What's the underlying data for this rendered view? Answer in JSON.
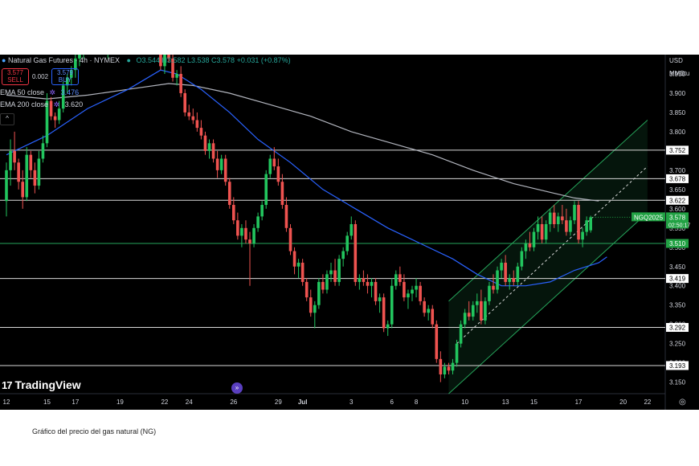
{
  "header": {
    "title": "Natural Gas Futures · 4h · NYMEX",
    "ohlc_text": "O3.544 H3.582 L3.538 C3.578 +0.031 (+0.87%)",
    "sell_price": "3.577",
    "sell_label": "SELL",
    "spread": "0.002",
    "buy_price": "3.579",
    "buy_label": "BUY",
    "ema50_label": "EMA 50 close",
    "ema50_value": "3.476",
    "ema200_label": "EMA 200 close",
    "ema200_value": "3.620",
    "currency": "USD",
    "unit": "MMBtu",
    "collapse_glyph": "^",
    "nav_glyph": "»",
    "settings_glyph": "◎"
  },
  "brand": {
    "name": "TradingView",
    "mark": "17"
  },
  "caption": "Gráfico del precio del gas natural (NG)",
  "colors": {
    "up": "#26a69a",
    "up_bright": "#22c55e",
    "down": "#ef5350",
    "ema50": "#2962ff",
    "ema200": "#b2b5be",
    "level": "#d9d9d9",
    "channel": "#26a65b",
    "price_tag": "#22a244"
  },
  "chart_data": {
    "type": "candlestick",
    "symbol": "NGQ2025",
    "current_price": "3.578",
    "countdown": "02:50:17",
    "ylim": [
      3.12,
      4.0
    ],
    "y_ticks": [
      "3.950",
      "3.900",
      "3.850",
      "3.800",
      "3.750",
      "3.700",
      "3.650",
      "3.600",
      "3.550",
      "3.500",
      "3.450",
      "3.400",
      "3.350",
      "3.300",
      "3.250",
      "3.200",
      "3.150"
    ],
    "x_ticks": [
      {
        "label": "12",
        "i": 0
      },
      {
        "label": "15",
        "i": 10
      },
      {
        "label": "17",
        "i": 17
      },
      {
        "label": "19",
        "i": 28
      },
      {
        "label": "22",
        "i": 39
      },
      {
        "label": "24",
        "i": 45
      },
      {
        "label": "26",
        "i": 56
      },
      {
        "label": "29",
        "i": 67
      },
      {
        "label": "Jul",
        "i": 73
      },
      {
        "label": "3",
        "i": 85
      },
      {
        "label": "6",
        "i": 95
      },
      {
        "label": "8",
        "i": 101
      },
      {
        "label": "10",
        "i": 113
      },
      {
        "label": "13",
        "i": 123
      },
      {
        "label": "15",
        "i": 130
      },
      {
        "label": "17",
        "i": 141
      },
      {
        "label": "20",
        "i": 152
      },
      {
        "label": "22",
        "i": 158
      }
    ],
    "horizontal_levels": [
      {
        "value": 3.752,
        "label": "3.752"
      },
      {
        "value": 3.678,
        "label": "3.678"
      },
      {
        "value": 3.622,
        "label": "3.622"
      },
      {
        "value": 3.419,
        "label": "3.419"
      },
      {
        "value": 3.292,
        "label": "3.292"
      },
      {
        "value": 3.193,
        "label": "3.193"
      }
    ],
    "green_level": {
      "value": 3.51,
      "label": "3.510"
    },
    "ema50_points": [
      [
        0,
        3.74
      ],
      [
        10,
        3.79
      ],
      [
        20,
        3.86
      ],
      [
        30,
        3.91
      ],
      [
        38,
        3.96
      ],
      [
        42,
        3.95
      ],
      [
        48,
        3.91
      ],
      [
        55,
        3.85
      ],
      [
        62,
        3.78
      ],
      [
        70,
        3.72
      ],
      [
        78,
        3.65
      ],
      [
        86,
        3.6
      ],
      [
        94,
        3.55
      ],
      [
        102,
        3.51
      ],
      [
        110,
        3.47
      ],
      [
        116,
        3.43
      ],
      [
        122,
        3.4
      ],
      [
        128,
        3.4
      ],
      [
        134,
        3.41
      ],
      [
        140,
        3.44
      ],
      [
        146,
        3.46
      ],
      [
        148,
        3.475
      ]
    ],
    "ema200_points": [
      [
        0,
        3.895
      ],
      [
        10,
        3.885
      ],
      [
        20,
        3.895
      ],
      [
        30,
        3.91
      ],
      [
        40,
        3.925
      ],
      [
        46,
        3.92
      ],
      [
        55,
        3.9
      ],
      [
        65,
        3.87
      ],
      [
        75,
        3.84
      ],
      [
        85,
        3.8
      ],
      [
        95,
        3.77
      ],
      [
        105,
        3.74
      ],
      [
        115,
        3.7
      ],
      [
        125,
        3.665
      ],
      [
        135,
        3.64
      ],
      [
        140,
        3.628
      ],
      [
        146,
        3.62
      ]
    ],
    "channel": {
      "upper": [
        [
          109,
          3.36
        ],
        [
          158,
          3.83
        ]
      ],
      "middle": [
        [
          111,
          3.25
        ],
        [
          158,
          3.71
        ]
      ],
      "lower": [
        [
          109,
          3.12
        ],
        [
          158,
          3.59
        ]
      ]
    },
    "candles": [
      [
        3.62,
        3.72,
        3.58,
        3.7
      ],
      [
        3.7,
        3.78,
        3.66,
        3.75
      ],
      [
        3.75,
        3.8,
        3.7,
        3.72
      ],
      [
        3.72,
        3.73,
        3.65,
        3.67
      ],
      [
        3.67,
        3.7,
        3.6,
        3.63
      ],
      [
        3.63,
        3.76,
        3.62,
        3.74
      ],
      [
        3.74,
        3.75,
        3.68,
        3.7
      ],
      [
        3.7,
        3.72,
        3.64,
        3.66
      ],
      [
        3.66,
        3.75,
        3.65,
        3.73
      ],
      [
        3.73,
        3.79,
        3.72,
        3.77
      ],
      [
        3.77,
        3.9,
        3.76,
        3.88
      ],
      [
        3.88,
        3.89,
        3.83,
        3.84
      ],
      [
        3.84,
        3.85,
        3.81,
        3.83
      ],
      [
        3.83,
        3.88,
        3.82,
        3.86
      ],
      [
        3.86,
        3.93,
        3.85,
        3.92
      ],
      [
        3.92,
        3.95,
        3.9,
        3.94
      ],
      [
        3.94,
        3.97,
        3.92,
        3.96
      ],
      [
        3.96,
        4.0,
        3.94,
        3.99
      ],
      [
        3.99,
        4.02,
        3.97,
        4.01
      ],
      [
        4.01,
        4.05,
        3.99,
        4.04
      ],
      [
        4.04,
        4.06,
        4.01,
        4.02
      ],
      [
        4.02,
        4.07,
        4.0,
        4.06
      ],
      [
        4.06,
        4.08,
        4.03,
        4.05
      ],
      [
        4.05,
        4.07,
        4.02,
        4.03
      ],
      [
        4.03,
        4.05,
        4.0,
        4.01
      ],
      [
        4.01,
        4.04,
        3.99,
        4.03
      ],
      [
        4.03,
        4.06,
        4.01,
        4.05
      ],
      [
        4.05,
        4.07,
        4.02,
        4.04
      ],
      [
        4.04,
        4.06,
        4.01,
        4.02
      ],
      [
        4.02,
        4.05,
        4.0,
        4.03
      ],
      [
        4.03,
        4.06,
        4.01,
        4.05
      ],
      [
        4.05,
        4.08,
        4.03,
        4.07
      ],
      [
        4.07,
        4.09,
        4.04,
        4.05
      ],
      [
        4.05,
        4.07,
        4.02,
        4.03
      ],
      [
        4.03,
        4.06,
        4.0,
        4.04
      ],
      [
        4.04,
        4.07,
        4.02,
        4.06
      ],
      [
        4.06,
        4.09,
        4.04,
        4.08
      ],
      [
        4.08,
        4.1,
        4.02,
        4.03
      ],
      [
        4.03,
        4.05,
        3.96,
        3.97
      ],
      [
        3.97,
        4.02,
        3.95,
        4.01
      ],
      [
        4.01,
        4.03,
        3.98,
        3.99
      ],
      [
        3.99,
        4.01,
        3.93,
        3.94
      ],
      [
        3.94,
        3.96,
        3.92,
        3.95
      ],
      [
        3.95,
        3.97,
        3.89,
        3.9
      ],
      [
        3.9,
        3.91,
        3.84,
        3.85
      ],
      [
        3.85,
        3.87,
        3.83,
        3.84
      ],
      [
        3.84,
        3.86,
        3.82,
        3.83
      ],
      [
        3.83,
        3.85,
        3.8,
        3.81
      ],
      [
        3.81,
        3.83,
        3.78,
        3.79
      ],
      [
        3.79,
        3.8,
        3.74,
        3.75
      ],
      [
        3.75,
        3.78,
        3.73,
        3.77
      ],
      [
        3.77,
        3.78,
        3.72,
        3.73
      ],
      [
        3.73,
        3.75,
        3.68,
        3.7
      ],
      [
        3.7,
        3.74,
        3.69,
        3.73
      ],
      [
        3.73,
        3.74,
        3.66,
        3.67
      ],
      [
        3.67,
        3.68,
        3.6,
        3.61
      ],
      [
        3.61,
        3.63,
        3.56,
        3.57
      ],
      [
        3.57,
        3.59,
        3.52,
        3.53
      ],
      [
        3.53,
        3.56,
        3.5,
        3.55
      ],
      [
        3.55,
        3.57,
        3.51,
        3.52
      ],
      [
        3.52,
        3.54,
        3.4,
        3.51
      ],
      [
        3.51,
        3.56,
        3.5,
        3.55
      ],
      [
        3.55,
        3.59,
        3.54,
        3.58
      ],
      [
        3.58,
        3.62,
        3.57,
        3.61
      ],
      [
        3.61,
        3.7,
        3.6,
        3.69
      ],
      [
        3.69,
        3.74,
        3.68,
        3.73
      ],
      [
        3.73,
        3.76,
        3.7,
        3.71
      ],
      [
        3.71,
        3.73,
        3.66,
        3.67
      ],
      [
        3.67,
        3.69,
        3.6,
        3.61
      ],
      [
        3.61,
        3.63,
        3.54,
        3.55
      ],
      [
        3.55,
        3.56,
        3.48,
        3.49
      ],
      [
        3.49,
        3.5,
        3.43,
        3.45
      ],
      [
        3.45,
        3.47,
        3.42,
        3.46
      ],
      [
        3.46,
        3.47,
        3.4,
        3.41
      ],
      [
        3.41,
        3.42,
        3.36,
        3.37
      ],
      [
        3.37,
        3.39,
        3.32,
        3.33
      ],
      [
        3.33,
        3.36,
        3.29,
        3.35
      ],
      [
        3.35,
        3.42,
        3.34,
        3.41
      ],
      [
        3.41,
        3.43,
        3.38,
        3.39
      ],
      [
        3.39,
        3.44,
        3.38,
        3.43
      ],
      [
        3.43,
        3.46,
        3.41,
        3.44
      ],
      [
        3.44,
        3.47,
        3.4,
        3.41
      ],
      [
        3.41,
        3.48,
        3.4,
        3.47
      ],
      [
        3.47,
        3.5,
        3.45,
        3.49
      ],
      [
        3.49,
        3.54,
        3.48,
        3.53
      ],
      [
        3.53,
        3.58,
        3.52,
        3.56
      ],
      [
        3.56,
        3.57,
        3.4,
        3.41
      ],
      [
        3.41,
        3.43,
        3.39,
        3.42
      ],
      [
        3.42,
        3.44,
        3.4,
        3.41
      ],
      [
        3.41,
        3.43,
        3.38,
        3.4
      ],
      [
        3.4,
        3.42,
        3.37,
        3.41
      ],
      [
        3.41,
        3.42,
        3.35,
        3.36
      ],
      [
        3.36,
        3.38,
        3.33,
        3.37
      ],
      [
        3.37,
        3.38,
        3.28,
        3.29
      ],
      [
        3.29,
        3.31,
        3.27,
        3.3
      ],
      [
        3.3,
        3.42,
        3.29,
        3.4
      ],
      [
        3.4,
        3.44,
        3.39,
        3.43
      ],
      [
        3.43,
        3.45,
        3.4,
        3.41
      ],
      [
        3.41,
        3.43,
        3.36,
        3.37
      ],
      [
        3.37,
        3.39,
        3.34,
        3.38
      ],
      [
        3.38,
        3.4,
        3.36,
        3.39
      ],
      [
        3.39,
        3.42,
        3.37,
        3.4
      ],
      [
        3.4,
        3.41,
        3.35,
        3.36
      ],
      [
        3.36,
        3.37,
        3.32,
        3.33
      ],
      [
        3.33,
        3.35,
        3.31,
        3.34
      ],
      [
        3.34,
        3.35,
        3.29,
        3.3
      ],
      [
        3.3,
        3.31,
        3.2,
        3.21
      ],
      [
        3.21,
        3.23,
        3.15,
        3.17
      ],
      [
        3.17,
        3.2,
        3.16,
        3.19
      ],
      [
        3.19,
        3.2,
        3.17,
        3.18
      ],
      [
        3.18,
        3.21,
        3.17,
        3.2
      ],
      [
        3.2,
        3.26,
        3.19,
        3.25
      ],
      [
        3.25,
        3.31,
        3.24,
        3.3
      ],
      [
        3.3,
        3.34,
        3.29,
        3.33
      ],
      [
        3.33,
        3.36,
        3.31,
        3.32
      ],
      [
        3.32,
        3.36,
        3.31,
        3.35
      ],
      [
        3.35,
        3.38,
        3.33,
        3.36
      ],
      [
        3.36,
        3.39,
        3.3,
        3.31
      ],
      [
        3.31,
        3.37,
        3.3,
        3.36
      ],
      [
        3.36,
        3.41,
        3.35,
        3.4
      ],
      [
        3.4,
        3.43,
        3.38,
        3.39
      ],
      [
        3.39,
        3.45,
        3.38,
        3.44
      ],
      [
        3.44,
        3.47,
        3.42,
        3.46
      ],
      [
        3.46,
        3.48,
        3.4,
        3.41
      ],
      [
        3.41,
        3.43,
        3.39,
        3.42
      ],
      [
        3.42,
        3.44,
        3.4,
        3.41
      ],
      [
        3.41,
        3.46,
        3.4,
        3.45
      ],
      [
        3.45,
        3.5,
        3.44,
        3.49
      ],
      [
        3.49,
        3.52,
        3.47,
        3.51
      ],
      [
        3.51,
        3.54,
        3.49,
        3.5
      ],
      [
        3.5,
        3.55,
        3.49,
        3.54
      ],
      [
        3.54,
        3.58,
        3.52,
        3.56
      ],
      [
        3.56,
        3.58,
        3.51,
        3.52
      ],
      [
        3.52,
        3.57,
        3.51,
        3.56
      ],
      [
        3.56,
        3.6,
        3.54,
        3.59
      ],
      [
        3.59,
        3.61,
        3.55,
        3.56
      ],
      [
        3.56,
        3.59,
        3.54,
        3.58
      ],
      [
        3.58,
        3.61,
        3.56,
        3.57
      ],
      [
        3.57,
        3.6,
        3.53,
        3.54
      ],
      [
        3.54,
        3.58,
        3.53,
        3.57
      ],
      [
        3.57,
        3.62,
        3.56,
        3.61
      ],
      [
        3.61,
        3.62,
        3.51,
        3.52
      ],
      [
        3.52,
        3.55,
        3.5,
        3.54
      ],
      [
        3.54,
        3.58,
        3.53,
        3.57
      ],
      [
        3.544,
        3.582,
        3.538,
        3.578
      ]
    ]
  }
}
